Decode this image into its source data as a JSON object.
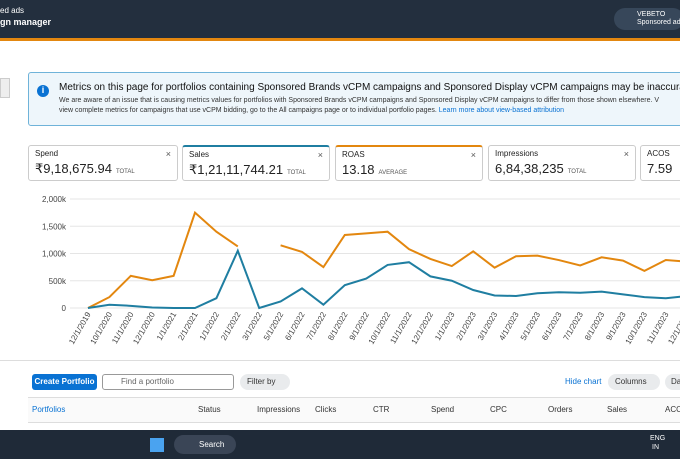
{
  "header": {
    "app_line1": "ed ads",
    "app_line2": "gn manager",
    "account_name": "VEBETO",
    "account_type": "Sponsored ad"
  },
  "banner": {
    "title": "Metrics on this page for portfolios containing Sponsored Brands vCPM campaigns and Sponsored Display vCPM campaigns may be inaccurate",
    "body_line1": "We are aware of an issue that is causing metrics values for portfolios with Sponsored Brands vCPM campaigns and Sponsored Display vCPM campaigns to differ from those shown elsewhere. V",
    "body_line2": "view complete metrics for campaigns that use vCPM bidding, go to the All campaigns page or to individual portfolio pages.",
    "link": "Learn more about view-based attribution"
  },
  "metrics": [
    {
      "label": "Spend",
      "value": "₹9,18,675.94",
      "unit": "TOTAL"
    },
    {
      "label": "Sales",
      "value": "₹1,21,11,744.21",
      "unit": "TOTAL"
    },
    {
      "label": "ROAS",
      "value": "13.18",
      "unit": "AVERAGE"
    },
    {
      "label": "Impressions",
      "value": "6,84,38,235",
      "unit": "TOTAL"
    },
    {
      "label": "ACOS",
      "value": "7.59"
    }
  ],
  "chart_data": {
    "type": "line",
    "categories": [
      "12/1/2019",
      "10/1/2020",
      "11/1/2020",
      "12/1/2020",
      "1/1/2021",
      "2/1/2021",
      "1/1/2022",
      "2/1/2022",
      "3/1/2022",
      "5/1/2022",
      "6/1/2022",
      "7/1/2022",
      "8/1/2022",
      "9/1/2022",
      "10/1/2022",
      "11/1/2022",
      "12/1/2022",
      "1/1/2023",
      "2/1/2023",
      "3/1/2023",
      "4/1/2023",
      "5/1/2023",
      "6/1/2023",
      "7/1/2023",
      "8/1/2023",
      "9/1/2023",
      "10/1/2023",
      "11/1/2023",
      "12/1/2023"
    ],
    "series": [
      {
        "color": "#e3870f",
        "values": [
          0,
          200000,
          590000,
          510000,
          590000,
          1750000,
          1400000,
          1130000,
          null,
          1150000,
          1030000,
          750000,
          1340000,
          1370000,
          1400000,
          1080000,
          900000,
          770000,
          1040000,
          740000,
          950000,
          960000,
          880000,
          780000,
          930000,
          870000,
          680000,
          880000,
          850000
        ]
      },
      {
        "color": "#1f7ea1",
        "values": [
          0,
          60000,
          40000,
          10000,
          0,
          0,
          180000,
          1050000,
          0,
          120000,
          360000,
          60000,
          420000,
          540000,
          790000,
          840000,
          580000,
          500000,
          330000,
          230000,
          220000,
          270000,
          290000,
          280000,
          300000,
          250000,
          200000,
          180000,
          220000
        ]
      }
    ],
    "ylim": [
      0,
      2000000
    ],
    "yticks": [
      0,
      {
        "value": 500000,
        "label": "500k"
      },
      {
        "value": 1000000,
        "label": "1,000k"
      },
      {
        "value": 1500000,
        "label": "1,500k"
      },
      {
        "value": 2000000,
        "label": "2,000k"
      }
    ],
    "grid": true
  },
  "toolbar": {
    "create": "Create Portfolio",
    "search": "Find a portfolio",
    "filter": "Filter by",
    "hide_chart": "Hide chart",
    "columns": "Columns",
    "date": "Da"
  },
  "table": {
    "columns": [
      "Portfolios",
      "Status",
      "Impressions",
      "Clicks",
      "CTR",
      "Spend",
      "CPC",
      "Orders",
      "Sales",
      "ACOS"
    ]
  },
  "taskbar": {
    "search": "Search",
    "lang1": "ENG",
    "lang2": "IN"
  }
}
